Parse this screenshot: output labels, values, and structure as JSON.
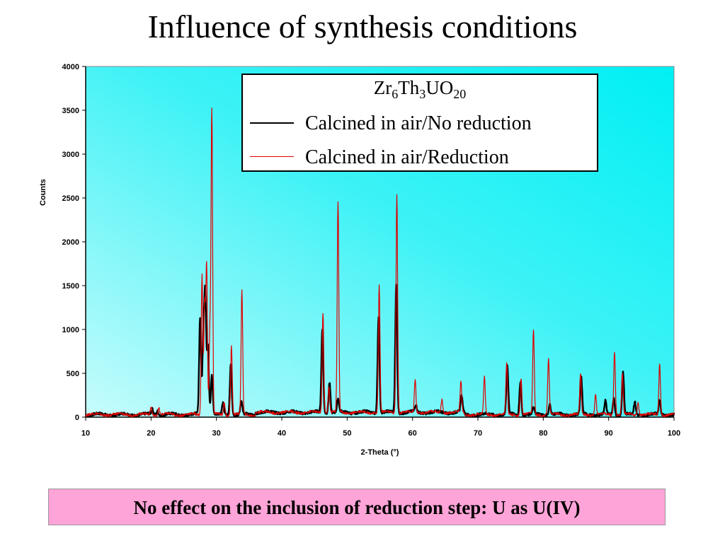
{
  "slide": {
    "title": "Influence of synthesis conditions",
    "note": "No effect on the inclusion of reduction step: U as U(IV)"
  },
  "legend": {
    "title_parts": [
      {
        "text": "Zr",
        "sub": false
      },
      {
        "text": "6",
        "sub": true
      },
      {
        "text": "Th",
        "sub": false
      },
      {
        "text": "3",
        "sub": true
      },
      {
        "text": "UO",
        "sub": false
      },
      {
        "text": "20",
        "sub": true
      }
    ]
  },
  "chart_data": {
    "type": "line",
    "xlabel": "2-Theta (°)",
    "ylabel": "Counts",
    "xlim": [
      10,
      100
    ],
    "ylim": [
      0,
      4000
    ],
    "xticks": [
      10,
      20,
      30,
      40,
      50,
      60,
      70,
      80,
      90,
      100
    ],
    "yticks": [
      0,
      500,
      1000,
      1500,
      2000,
      2500,
      3000,
      3500,
      4000
    ],
    "grid": false,
    "plot_background": "#00f0f4",
    "legend_position": "top-right",
    "series": [
      {
        "name": "Calcined in air/No reduction",
        "color": "#000000",
        "baseline": 30,
        "peaks": [
          [
            20.2,
            60
          ],
          [
            21.0,
            50
          ],
          [
            27.5,
            1100
          ],
          [
            28.0,
            900
          ],
          [
            28.3,
            1350
          ],
          [
            28.7,
            800
          ],
          [
            29.3,
            450
          ],
          [
            31.0,
            120
          ],
          [
            32.2,
            600
          ],
          [
            33.8,
            150
          ],
          [
            46.2,
            950
          ],
          [
            47.3,
            350
          ],
          [
            48.6,
            150
          ],
          [
            54.8,
            1100
          ],
          [
            57.5,
            1450
          ],
          [
            60.5,
            80
          ],
          [
            67.5,
            180
          ],
          [
            74.5,
            550
          ],
          [
            76.5,
            390
          ],
          [
            78.5,
            80
          ],
          [
            81.0,
            120
          ],
          [
            85.8,
            420
          ],
          [
            89.5,
            150
          ],
          [
            90.8,
            180
          ],
          [
            92.2,
            490
          ],
          [
            94.0,
            140
          ],
          [
            97.8,
            160
          ]
        ]
      },
      {
        "name": "Calcined in air/Reduction",
        "color": "#e00000",
        "baseline": 30,
        "peaks": [
          [
            20.0,
            90
          ],
          [
            21.2,
            80
          ],
          [
            27.8,
            1600
          ],
          [
            28.2,
            1250
          ],
          [
            28.5,
            1700
          ],
          [
            29.0,
            900
          ],
          [
            29.3,
            3450
          ],
          [
            31.2,
            150
          ],
          [
            32.3,
            780
          ],
          [
            33.9,
            1420
          ],
          [
            46.3,
            1150
          ],
          [
            47.2,
            300
          ],
          [
            48.6,
            2400
          ],
          [
            54.9,
            1460
          ],
          [
            57.6,
            2490
          ],
          [
            60.4,
            380
          ],
          [
            64.5,
            150
          ],
          [
            67.4,
            360
          ],
          [
            71.0,
            430
          ],
          [
            74.4,
            570
          ],
          [
            76.6,
            420
          ],
          [
            78.5,
            970
          ],
          [
            80.8,
            650
          ],
          [
            85.7,
            460
          ],
          [
            88.0,
            230
          ],
          [
            90.9,
            730
          ],
          [
            92.1,
            470
          ],
          [
            94.5,
            150
          ],
          [
            97.8,
            590
          ]
        ]
      }
    ]
  }
}
